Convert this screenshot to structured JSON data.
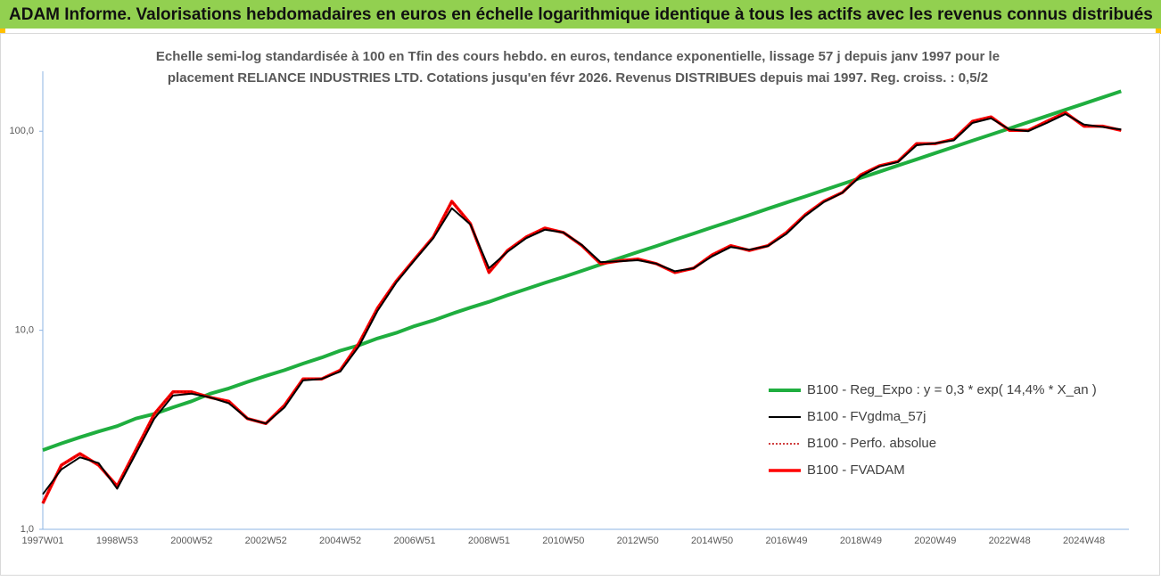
{
  "chart_data": {
    "type": "line",
    "title": "ADAM Informe. Valorisations hebdomadaires en euros en échelle logarithmique identique à tous les actifs avec les revenus connus distribués",
    "subtitle": [
      "Echelle semi-log standardisée à 100 en Tfin des cours hebdo. en euros, tendance exponentielle, lissage 57 j depuis janv 1997 pour le",
      "placement RELIANCE INDUSTRIES LTD. Cotations jusqu'en févr 2026. Revenus DISTRIBUES depuis mai 1997. Reg. croiss. : 0,5/2"
    ],
    "ylog": true,
    "ylim": [
      1,
      200
    ],
    "yticks": [
      {
        "value": 1,
        "label": "1,0"
      },
      {
        "value": 10,
        "label": "10,0"
      },
      {
        "value": 100,
        "label": "100,0"
      }
    ],
    "categories": [
      "1997W01",
      null,
      null,
      null,
      "1998W53",
      null,
      null,
      null,
      "2000W52",
      null,
      null,
      null,
      "2002W52",
      null,
      null,
      null,
      "2004W52",
      null,
      null,
      null,
      "2006W51",
      null,
      null,
      null,
      "2008W51",
      null,
      null,
      null,
      "2010W50",
      null,
      null,
      null,
      "2012W50",
      null,
      null,
      null,
      "2014W50",
      null,
      null,
      null,
      "2016W49",
      null,
      null,
      null,
      "2018W49",
      null,
      null,
      null,
      "2020W49",
      null,
      null,
      null,
      "2022W48",
      null,
      null,
      null,
      "2024W48",
      null,
      null
    ],
    "series": [
      {
        "name": "B100 - Reg_Expo : y = 0,3 * exp( 14,4% *  X_an )",
        "color": "#1fae3f",
        "width": 4,
        "line_style": "solid",
        "values": [
          2.5,
          2.7,
          2.9,
          3.1,
          3.3,
          3.6,
          3.8,
          4.1,
          4.4,
          4.8,
          5.1,
          5.5,
          5.9,
          6.3,
          6.8,
          7.3,
          7.9,
          8.4,
          9.1,
          9.7,
          10.5,
          11.2,
          12.1,
          13.0,
          13.9,
          15.0,
          16.1,
          17.3,
          18.5,
          19.9,
          21.4,
          23.0,
          24.7,
          26.5,
          28.5,
          30.6,
          32.9,
          35.3,
          37.9,
          40.8,
          43.8,
          47.0,
          50.5,
          54.3,
          58.3,
          62.6,
          67.3,
          72.2,
          77.6,
          83.4,
          89.6,
          96.2,
          103.3,
          111.0,
          119.2,
          128.1,
          137.6,
          147.8,
          158.8
        ]
      },
      {
        "name": "B100 - FVgdma_57j",
        "color": "#000000",
        "width": 2,
        "line_style": "solid",
        "values": [
          1.5,
          2.0,
          2.3,
          2.15,
          1.6,
          2.4,
          3.6,
          4.7,
          4.8,
          4.6,
          4.3,
          3.6,
          3.4,
          4.1,
          5.6,
          5.7,
          6.2,
          8.3,
          12.5,
          17.3,
          22.5,
          29,
          41,
          34,
          20.5,
          24.8,
          29,
          32,
          31,
          26.8,
          22,
          22.2,
          22.5,
          21.6,
          19.8,
          20.5,
          23.5,
          26.2,
          25.4,
          26.5,
          30.5,
          37.5,
          44,
          49,
          59.5,
          66.5,
          70,
          85,
          87,
          90,
          110,
          116,
          102,
          100,
          110,
          122,
          108,
          105,
          102
        ]
      },
      {
        "name": "B100 - Perfo. absolue",
        "color": "#c00000",
        "width": 1.5,
        "line_style": "dotted",
        "values": [
          1.35,
          2.1,
          2.4,
          2.1,
          1.65,
          2.5,
          3.8,
          4.9,
          4.9,
          4.6,
          4.4,
          3.6,
          3.4,
          4.2,
          5.7,
          5.7,
          6.3,
          8.6,
          12.9,
          17.6,
          22.8,
          29.4,
          44.4,
          34.3,
          19.5,
          25.2,
          29.4,
          32.6,
          31.0,
          26.6,
          21.6,
          22.3,
          22.8,
          21.6,
          19.5,
          20.5,
          23.9,
          26.6,
          25.2,
          26.6,
          31.0,
          38.0,
          44.4,
          49.2,
          60.4,
          67.0,
          70.5,
          86.6,
          86.6,
          91.2,
          112,
          118,
          101,
          101,
          112,
          124,
          106,
          106,
          101
        ]
      },
      {
        "name": "B100 - FVADAM",
        "color": "#ff0000",
        "width": 3.5,
        "line_style": "solid",
        "values": [
          1.35,
          2.1,
          2.4,
          2.1,
          1.65,
          2.5,
          3.8,
          4.9,
          4.9,
          4.6,
          4.4,
          3.6,
          3.4,
          4.2,
          5.7,
          5.7,
          6.3,
          8.6,
          12.9,
          17.6,
          22.8,
          29.4,
          44.4,
          34.3,
          19.5,
          25.2,
          29.4,
          32.6,
          31.0,
          26.6,
          21.6,
          22.3,
          22.8,
          21.6,
          19.5,
          20.5,
          23.9,
          26.6,
          25.2,
          26.6,
          31.0,
          38.0,
          44.4,
          49.2,
          60.4,
          67.0,
          70.5,
          86.6,
          86.6,
          91.2,
          112,
          118,
          101,
          101,
          112,
          124,
          106,
          106,
          101
        ]
      }
    ],
    "legend": "lower-right"
  }
}
